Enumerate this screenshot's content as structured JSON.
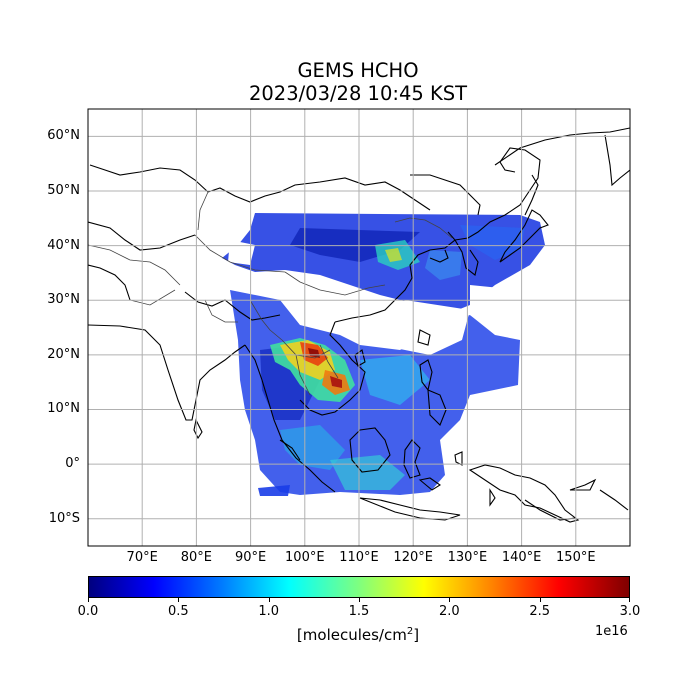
{
  "title": "GEMS HCHO",
  "subtitle": "2023/03/28 10:45 KST",
  "latitudes": [
    {
      "value": 60,
      "label": "60°N"
    },
    {
      "value": 50,
      "label": "50°N"
    },
    {
      "value": 40,
      "label": "40°N"
    },
    {
      "value": 30,
      "label": "30°N"
    },
    {
      "value": 20,
      "label": "20°N"
    },
    {
      "value": 10,
      "label": "10°N"
    },
    {
      "value": 0,
      "label": "0°"
    },
    {
      "value": -10,
      "label": "10°S"
    }
  ],
  "longitudes": [
    {
      "value": 70,
      "label": "70°E"
    },
    {
      "value": 80,
      "label": "80°E"
    },
    {
      "value": 90,
      "label": "90°E"
    },
    {
      "value": 100,
      "label": "100°E"
    },
    {
      "value": 110,
      "label": "110°E"
    },
    {
      "value": 120,
      "label": "120°E"
    },
    {
      "value": 130,
      "label": "130°E"
    },
    {
      "value": 140,
      "label": "140°E"
    },
    {
      "value": 150,
      "label": "150°E"
    }
  ],
  "extent": {
    "lon_min": 60,
    "lon_max": 160,
    "lat_min": -15,
    "lat_max": 65
  },
  "colorbar": {
    "ticks": [
      "0.0",
      "0.5",
      "1.0",
      "1.5",
      "2.0",
      "2.5",
      "3.0"
    ],
    "range": [
      0.0,
      3.0
    ],
    "exponent": "1e16",
    "label_prefix": "[molecules/cm",
    "label_sup": "2",
    "label_suffix": "]",
    "colormap": "jet"
  }
}
